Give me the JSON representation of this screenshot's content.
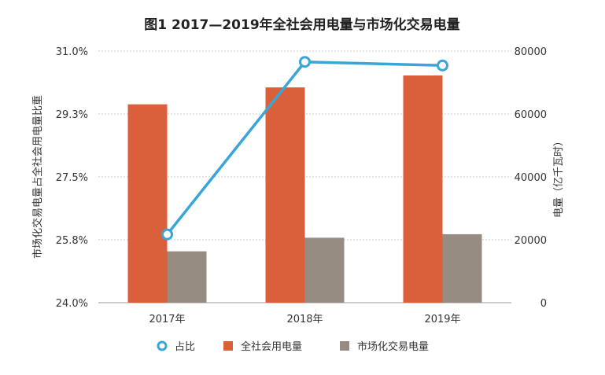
{
  "chart_data": {
    "type": "bar",
    "title": "图1 2017—2019年全社会用电量与市场化交易电量",
    "categories": [
      "2017年",
      "2018年",
      "2019年"
    ],
    "series": [
      {
        "name": "全社会用电量",
        "type": "bar",
        "axis": "right",
        "color": "#D9603B",
        "values": [
          63077,
          68449,
          72255
        ]
      },
      {
        "name": "市场化交易电量",
        "type": "bar",
        "axis": "right",
        "color": "#978C81",
        "values": [
          16324,
          20654,
          21771
        ]
      },
      {
        "name": "占比",
        "type": "line",
        "axis": "left",
        "color": "#3AA5D8",
        "values": [
          25.9,
          30.7,
          30.6
        ]
      }
    ],
    "y_left": {
      "label": "市场化交易电量占全社会用电量比重",
      "range": [
        24.0,
        31.0
      ],
      "ticks": [
        "24.0%",
        "25.8%",
        "27.5%",
        "29.3%",
        "31.0%"
      ]
    },
    "y_right": {
      "label": "电量（亿千瓦时）",
      "range": [
        0,
        80000
      ],
      "ticks": [
        "0",
        "20000",
        "40000",
        "60000",
        "80000"
      ]
    },
    "legend": {
      "placement": "bottom",
      "entries": [
        "占比",
        "全社会用电量",
        "市场化交易电量"
      ]
    },
    "grid": true
  }
}
